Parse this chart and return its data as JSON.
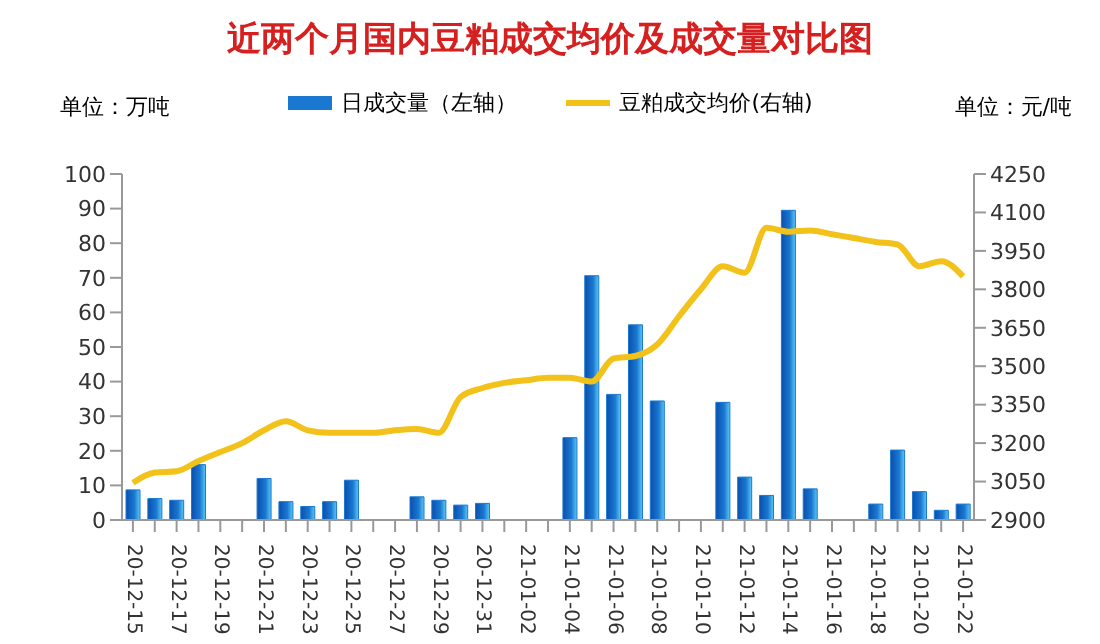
{
  "chart_data": {
    "type": "bar",
    "title": "近两个月国内豆粕成交均价及成交量对比图",
    "ylabel": "单位：万吨",
    "y2label": "单位：元/吨",
    "categories": [
      "20-12-15",
      null,
      "20-12-17",
      null,
      "20-12-19",
      null,
      "20-12-21",
      null,
      "20-12-23",
      null,
      "20-12-25",
      null,
      "20-12-27",
      null,
      "20-12-29",
      null,
      "20-12-31",
      null,
      "21-01-02",
      null,
      "21-01-04",
      null,
      "21-01-06",
      null,
      "21-01-08",
      null,
      "21-01-10",
      null,
      "21-01-12",
      null,
      "21-01-14",
      null,
      "21-01-16",
      null,
      "21-01-18",
      null,
      "21-01-20",
      null,
      "21-01-22"
    ],
    "series": [
      {
        "name": "日成交量（左轴）",
        "color": "#1a78d0",
        "values": [
          8.7,
          6.2,
          5.7,
          16,
          null,
          null,
          12,
          5.3,
          3.9,
          5.3,
          11.5,
          null,
          null,
          6.7,
          5.7,
          4.3,
          4.8,
          null,
          null,
          null,
          23.8,
          70.6,
          36.3,
          56.4,
          34.4,
          null,
          null,
          34,
          12.4,
          7.1,
          89.5,
          9,
          null,
          null,
          4.6,
          20.2,
          8.2,
          2.8,
          4.6
        ]
      },
      {
        "name": "豆粕成交均价(右轴)",
        "type": "line",
        "axis": "y2",
        "color": "#f2c21a",
        "values": [
          3045,
          3085,
          3090,
          3130,
          3165,
          3200,
          3250,
          3285,
          3250,
          3240,
          3240,
          3240,
          3250,
          3255,
          3240,
          3380,
          3415,
          3435,
          3445,
          3455,
          3455,
          3440,
          3530,
          3540,
          3585,
          3695,
          3800,
          3890,
          3865,
          4040,
          4025,
          4030,
          4015,
          4000,
          3985,
          3975,
          3890,
          3910,
          3850
        ]
      }
    ],
    "ylim": [
      0,
      100
    ],
    "yticks": [
      0,
      10,
      20,
      30,
      40,
      50,
      60,
      70,
      80,
      90,
      100
    ],
    "y2lim": [
      2900,
      4250
    ],
    "y2ticks": [
      2900,
      3050,
      3200,
      3350,
      3500,
      3650,
      3800,
      3950,
      4100,
      4250
    ],
    "grid": false,
    "legend": "top",
    "marker": "none",
    "line_style": "solid"
  }
}
